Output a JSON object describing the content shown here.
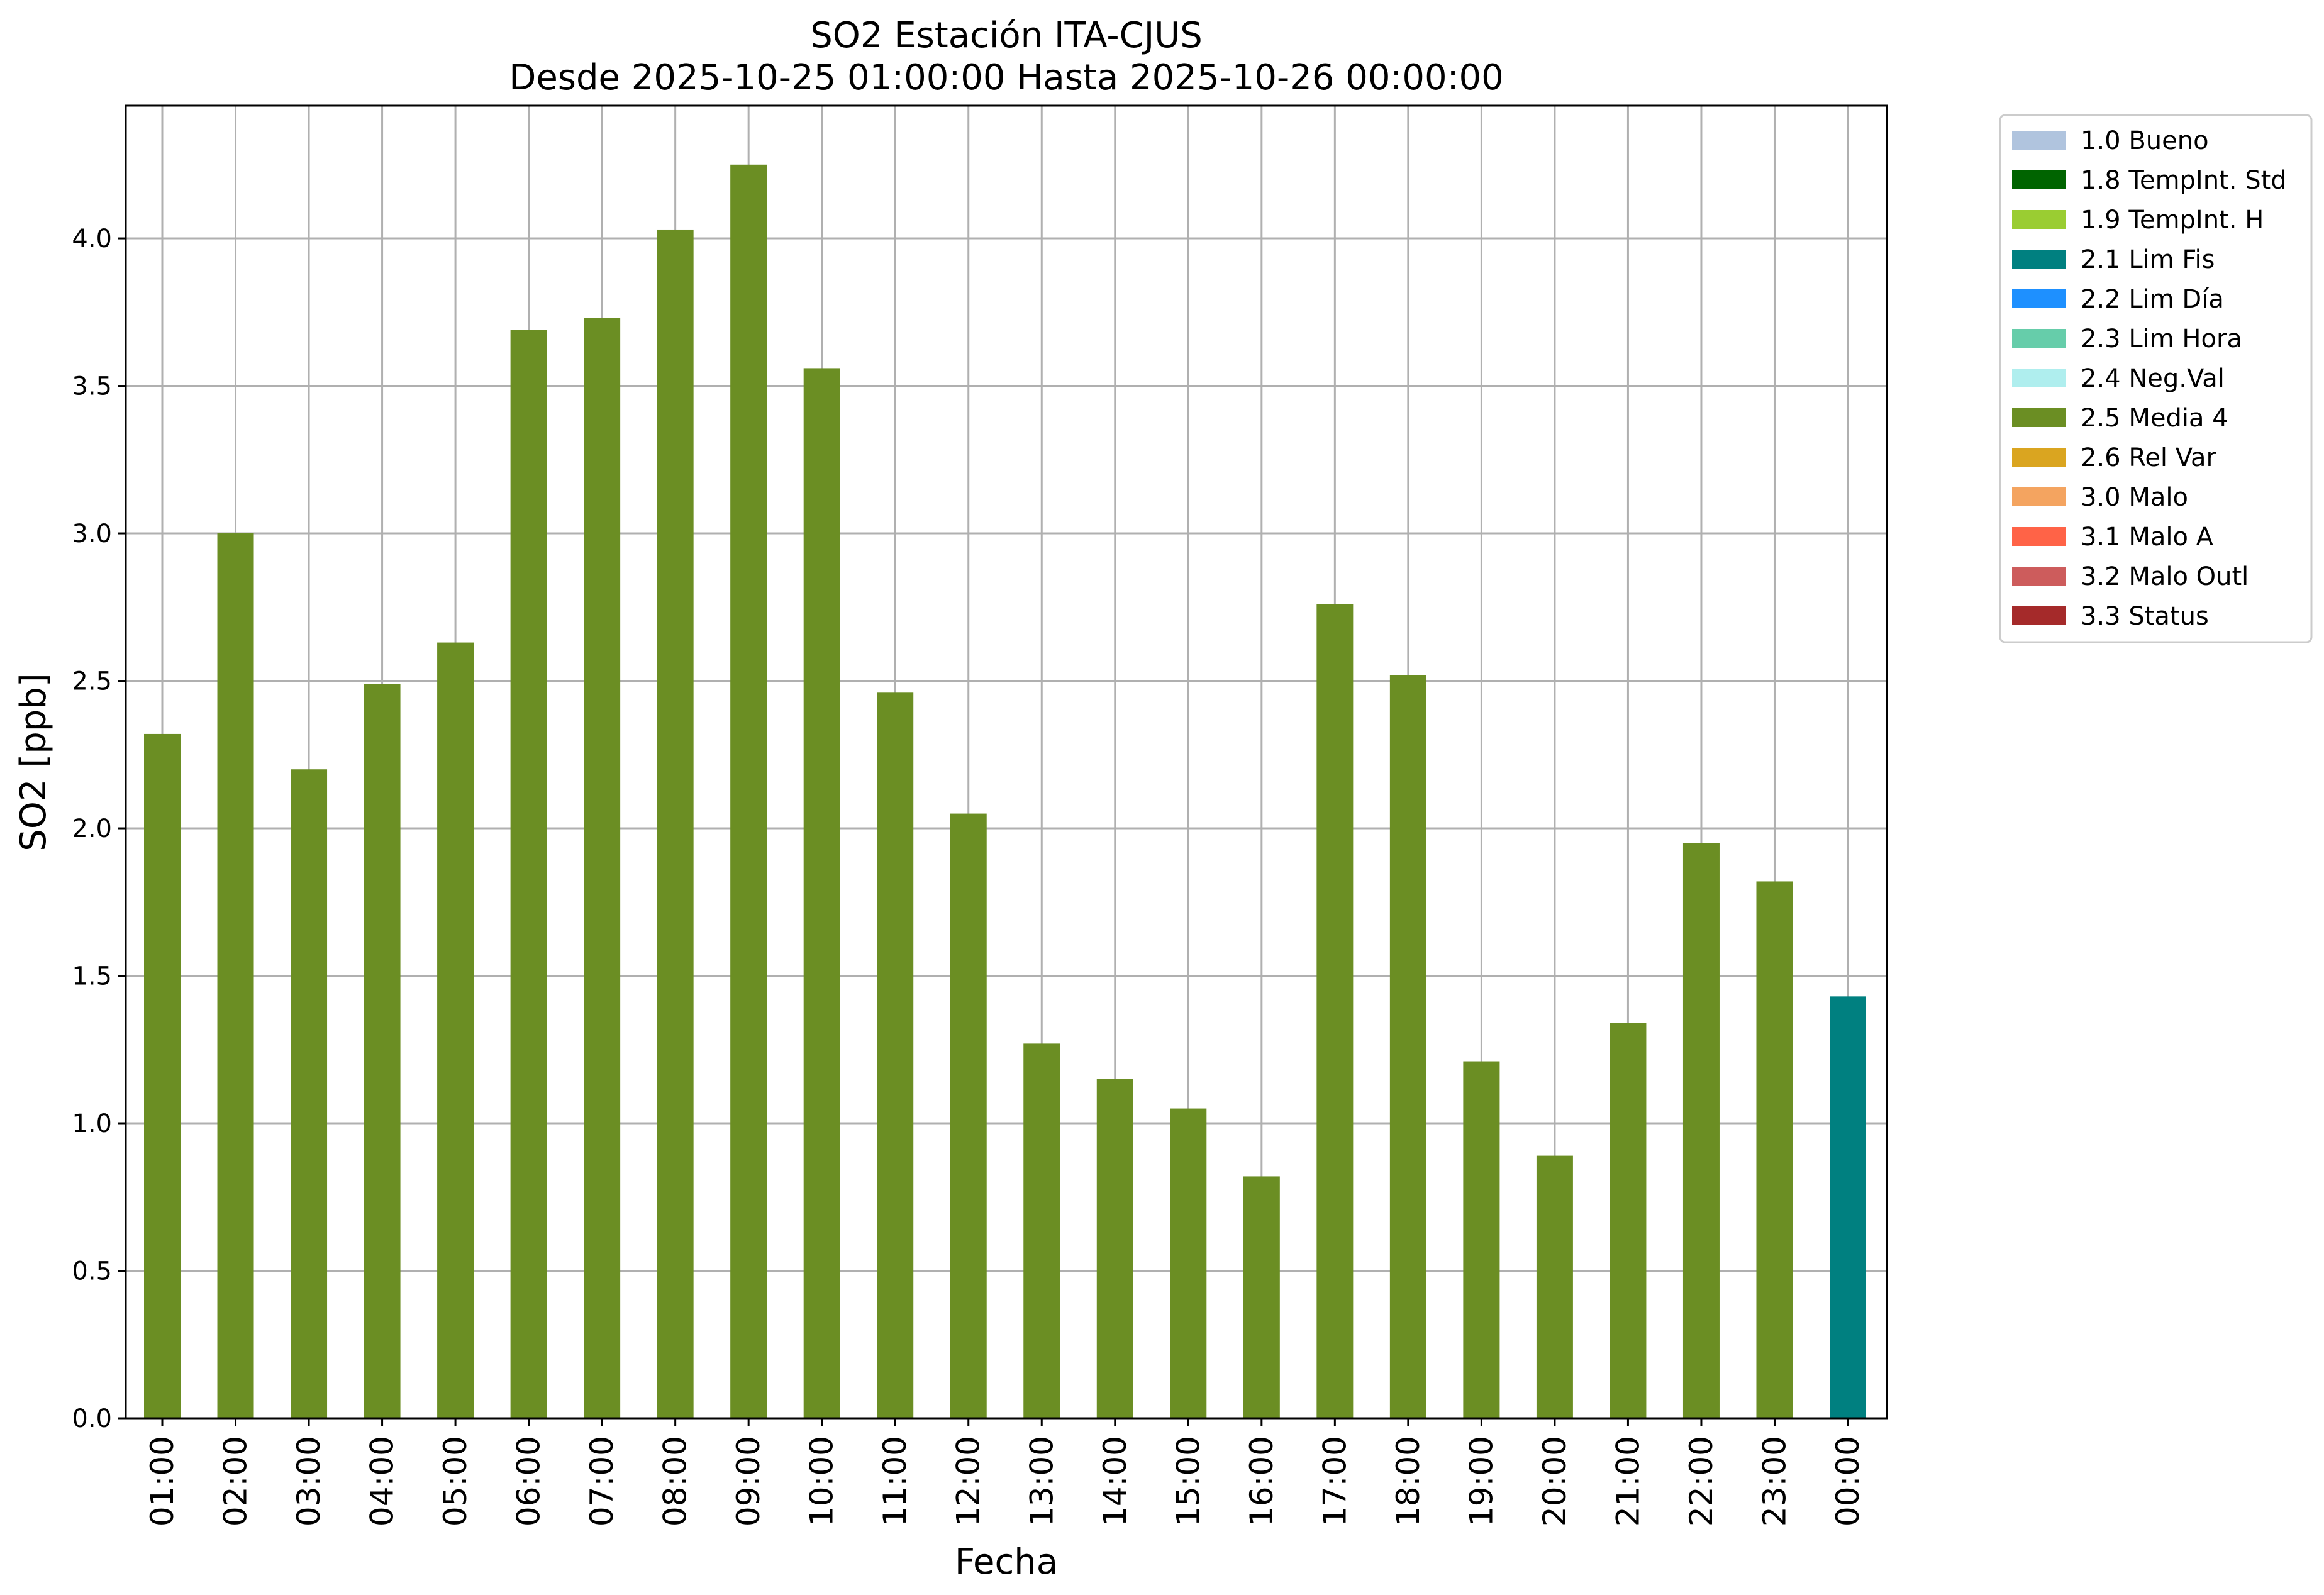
{
  "chart_data": {
    "type": "bar",
    "title_line1": "SO2 Estación ITA-CJUS",
    "title_line2": "Desde 2025-10-25 01:00:00 Hasta 2025-10-26 00:00:00",
    "xlabel": "Fecha",
    "ylabel": "SO2 [ppb]",
    "ylim": [
      0,
      4.45
    ],
    "yticks": [
      "0.0",
      "0.5",
      "1.0",
      "1.5",
      "2.0",
      "2.5",
      "3.0",
      "3.5",
      "4.0"
    ],
    "grid": true,
    "legend_position": "outside-top-right",
    "categories": [
      "01:00",
      "02:00",
      "03:00",
      "04:00",
      "05:00",
      "06:00",
      "07:00",
      "08:00",
      "09:00",
      "10:00",
      "11:00",
      "12:00",
      "13:00",
      "14:00",
      "15:00",
      "16:00",
      "17:00",
      "18:00",
      "19:00",
      "20:00",
      "21:00",
      "22:00",
      "23:00",
      "00:00"
    ],
    "values": [
      2.32,
      3.0,
      2.2,
      2.49,
      2.63,
      3.69,
      3.73,
      4.03,
      4.25,
      3.56,
      2.46,
      2.05,
      1.27,
      1.15,
      1.05,
      0.82,
      2.76,
      2.52,
      1.21,
      0.89,
      1.34,
      1.95,
      1.82,
      1.43
    ],
    "flags": [
      "2.5 Media 4",
      "2.5 Media 4",
      "2.5 Media 4",
      "2.5 Media 4",
      "2.5 Media 4",
      "2.5 Media 4",
      "2.5 Media 4",
      "2.5 Media 4",
      "2.5 Media 4",
      "2.5 Media 4",
      "2.5 Media 4",
      "2.5 Media 4",
      "2.5 Media 4",
      "2.5 Media 4",
      "2.5 Media 4",
      "2.5 Media 4",
      "2.5 Media 4",
      "2.5 Media 4",
      "2.5 Media 4",
      "2.5 Media 4",
      "2.5 Media 4",
      "2.5 Media 4",
      "2.5 Media 4",
      "2.1 Lim Fis"
    ],
    "legend": [
      {
        "label": "1.0 Bueno",
        "color": "#b0c4de"
      },
      {
        "label": "1.8 TempInt. Std",
        "color": "#006400"
      },
      {
        "label": "1.9 TempInt. H",
        "color": "#9acd32"
      },
      {
        "label": "2.1 Lim Fis",
        "color": "#008080"
      },
      {
        "label": "2.2 Lim Día",
        "color": "#1e90ff"
      },
      {
        "label": "2.3 Lim Hora",
        "color": "#66cdaa"
      },
      {
        "label": "2.4 Neg.Val",
        "color": "#afeeee"
      },
      {
        "label": "2.5 Media 4",
        "color": "#6b8e23"
      },
      {
        "label": "2.6 Rel Var",
        "color": "#daa520"
      },
      {
        "label": "3.0 Malo",
        "color": "#f4a460"
      },
      {
        "label": "3.1 Malo A",
        "color": "#ff6347"
      },
      {
        "label": "3.2 Malo Outl",
        "color": "#cd5c5c"
      },
      {
        "label": "3.3 Status",
        "color": "#a52a2a"
      }
    ]
  }
}
